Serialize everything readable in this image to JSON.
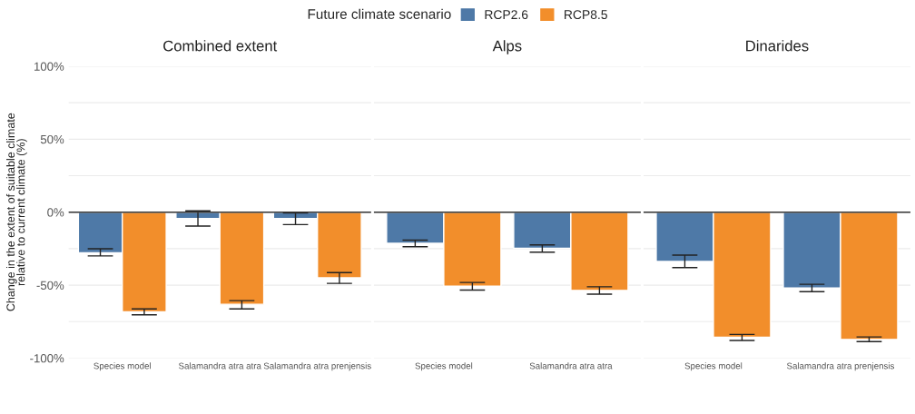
{
  "chart_data": [
    {
      "type": "bar",
      "title": "Combined extent",
      "ylabel": "Change in the extent of suitable climate\nrelative to current climate (%)",
      "legend_title": "Future climate scenario",
      "legend": "top",
      "grid": "y",
      "categories": [
        "Species model",
        "Salamandra atra atra",
        "Salamandra atra prenjensis"
      ],
      "series": [
        {
          "name": "RCP2.6",
          "color": "#4e79a7",
          "values": [
            -27.9,
            -4.4,
            -4.4
          ],
          "errors": [
            [
              -30.0,
              -25.1
            ],
            [
              -9.5,
              0.9
            ],
            [
              -8.5,
              -0.6
            ]
          ]
        },
        {
          "name": "RCP8.5",
          "color": "#f28e2b",
          "values": [
            -68.2,
            -63.1,
            -45.0
          ],
          "errors": [
            [
              -70.3,
              -66.3
            ],
            [
              -66.3,
              -60.6
            ],
            [
              -48.8,
              -41.4
            ]
          ]
        }
      ],
      "ylim": [
        -100,
        100
      ],
      "yticks": [
        {
          "value": 100,
          "label": "100%"
        },
        {
          "value": 75,
          "label": null
        },
        {
          "value": 50,
          "label": "50%"
        },
        {
          "value": 25,
          "label": null
        },
        {
          "value": 0,
          "label": "0%"
        },
        {
          "value": -25,
          "label": null
        },
        {
          "value": -50,
          "label": "-50%"
        },
        {
          "value": -75,
          "label": null
        },
        {
          "value": -100,
          "label": "-100%"
        }
      ],
      "ref_lines": [
        {
          "axis": "y",
          "value": 0,
          "color": "#333333"
        }
      ]
    },
    {
      "type": "bar",
      "title": "Alps",
      "grid": "y",
      "tick_labels": "x",
      "categories": [
        "Species model",
        "Salamandra atra atra"
      ],
      "series": [
        {
          "color": "#4e79a7",
          "values": [
            -21.3,
            -24.7
          ],
          "errors": [
            [
              -23.7,
              -19.2
            ],
            [
              -27.4,
              -22.4
            ]
          ]
        },
        {
          "color": "#f28e2b",
          "values": [
            -50.7,
            -53.6
          ],
          "errors": [
            [
              -53.4,
              -48.2
            ],
            [
              -56.2,
              -51.1
            ]
          ]
        }
      ],
      "ylim": [
        -100,
        100
      ],
      "yticks": [
        {
          "value": 100,
          "label": null
        },
        {
          "value": 75,
          "label": null
        },
        {
          "value": 50,
          "label": null
        },
        {
          "value": 25,
          "label": null
        },
        {
          "value": 0,
          "label": null
        },
        {
          "value": -25,
          "label": null
        },
        {
          "value": -50,
          "label": null
        },
        {
          "value": -75,
          "label": null
        },
        {
          "value": -100,
          "label": null
        }
      ],
      "ref_lines": [
        {
          "axis": "y",
          "value": 0,
          "color": "#333333"
        }
      ]
    },
    {
      "type": "bar",
      "title": "Dinarides",
      "grid": "y",
      "tick_labels": "x",
      "categories": [
        "Species model",
        "Salamandra atra prenjensis"
      ],
      "series": [
        {
          "color": "#4e79a7",
          "values": [
            -33.8,
            -51.9
          ],
          "errors": [
            [
              -38.0,
              -29.4
            ],
            [
              -54.5,
              -49.4
            ]
          ]
        },
        {
          "color": "#f28e2b",
          "values": [
            -85.7,
            -87.2
          ],
          "errors": [
            [
              -87.9,
              -83.8
            ],
            [
              -88.7,
              -85.5
            ]
          ]
        }
      ],
      "ylim": [
        -100,
        100
      ],
      "yticks": [
        {
          "value": 100,
          "label": null
        },
        {
          "value": 75,
          "label": null
        },
        {
          "value": 50,
          "label": null
        },
        {
          "value": 25,
          "label": null
        },
        {
          "value": 0,
          "label": null
        },
        {
          "value": -25,
          "label": null
        },
        {
          "value": -50,
          "label": null
        },
        {
          "value": -75,
          "label": null
        },
        {
          "value": -100,
          "label": null
        }
      ],
      "ref_lines": [
        {
          "axis": "y",
          "value": 0,
          "color": "#333333"
        }
      ]
    }
  ]
}
